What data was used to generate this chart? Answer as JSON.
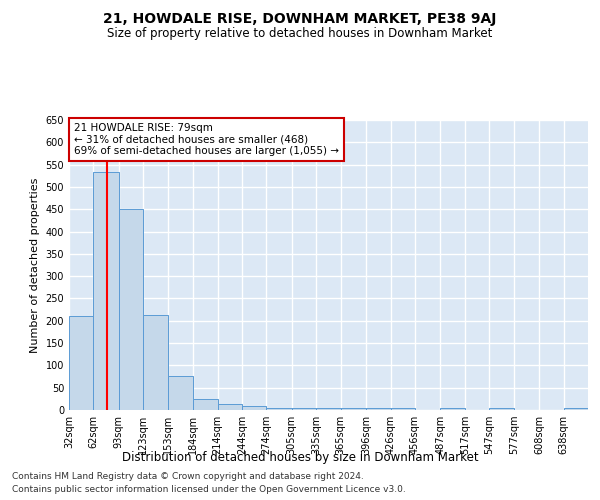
{
  "title": "21, HOWDALE RISE, DOWNHAM MARKET, PE38 9AJ",
  "subtitle": "Size of property relative to detached houses in Downham Market",
  "xlabel": "Distribution of detached houses by size in Downham Market",
  "ylabel": "Number of detached properties",
  "footer_line1": "Contains HM Land Registry data © Crown copyright and database right 2024.",
  "footer_line2": "Contains public sector information licensed under the Open Government Licence v3.0.",
  "annotation_line1": "21 HOWDALE RISE: 79sqm",
  "annotation_line2": "← 31% of detached houses are smaller (468)",
  "annotation_line3": "69% of semi-detached houses are larger (1,055) →",
  "property_size_sqm": 79,
  "bar_left_edges": [
    32,
    62,
    93,
    123,
    153,
    184,
    214,
    244,
    274,
    305,
    335,
    365,
    396,
    426,
    456,
    487,
    517,
    547,
    577,
    608,
    638
  ],
  "bar_widths": [
    30,
    31,
    30,
    30,
    31,
    30,
    30,
    30,
    31,
    30,
    30,
    31,
    30,
    30,
    31,
    30,
    30,
    30,
    31,
    30,
    30
  ],
  "bar_heights": [
    210,
    533,
    450,
    213,
    77,
    25,
    13,
    10,
    5,
    5,
    5,
    5,
    5,
    5,
    0,
    5,
    0,
    5,
    0,
    0,
    5
  ],
  "bar_facecolor": "#c5d8ea",
  "bar_edgecolor": "#5b9bd5",
  "redline_x": 79,
  "redline_color": "#ff0000",
  "annotation_box_edgecolor": "#cc0000",
  "annotation_box_facecolor": "#ffffff",
  "ylim": [
    0,
    650
  ],
  "xlim_left": 32,
  "xlim_right": 668,
  "background_color": "#dce8f5",
  "grid_color": "#ffffff",
  "title_fontsize": 10,
  "subtitle_fontsize": 8.5,
  "xlabel_fontsize": 8.5,
  "ylabel_fontsize": 8,
  "tick_fontsize": 7,
  "annotation_fontsize": 7.5,
  "footer_fontsize": 6.5,
  "tick_labels": [
    "32sqm",
    "62sqm",
    "93sqm",
    "123sqm",
    "153sqm",
    "184sqm",
    "214sqm",
    "244sqm",
    "274sqm",
    "305sqm",
    "335sqm",
    "365sqm",
    "396sqm",
    "426sqm",
    "456sqm",
    "487sqm",
    "517sqm",
    "547sqm",
    "577sqm",
    "608sqm",
    "638sqm"
  ],
  "yticks": [
    0,
    50,
    100,
    150,
    200,
    250,
    300,
    350,
    400,
    450,
    500,
    550,
    600,
    650
  ]
}
